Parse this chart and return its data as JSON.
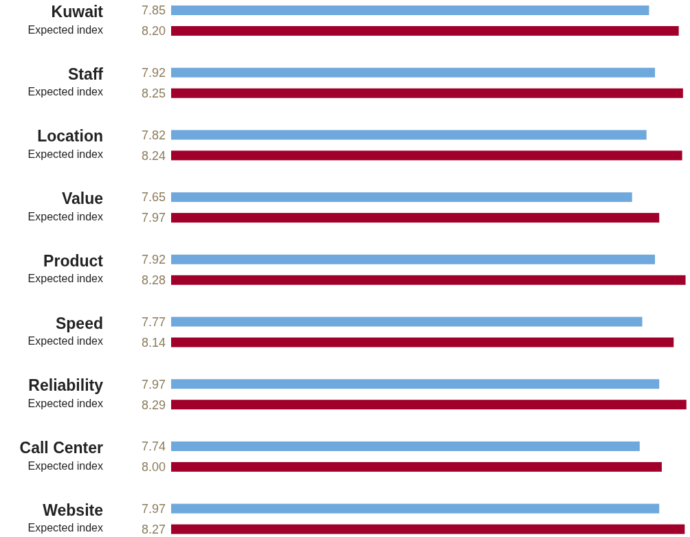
{
  "chart_data": {
    "type": "bar",
    "orientation": "horizontal",
    "categories": [
      "Kuwait",
      "Staff",
      "Location",
      "Value",
      "Product",
      "Speed",
      "Reliability",
      "Call Center",
      "Website"
    ],
    "series": [
      {
        "color": "#6fa8dc",
        "values": [
          7.85,
          7.92,
          7.82,
          7.65,
          7.92,
          7.77,
          7.97,
          7.74,
          7.97
        ],
        "value_labels": [
          "7.85",
          "7.92",
          "7.82",
          "7.65",
          "7.92",
          "7.77",
          "7.97",
          "7.74",
          "7.97"
        ]
      },
      {
        "name": "Expected index",
        "color": "#a0002a",
        "values": [
          8.2,
          8.25,
          8.24,
          7.97,
          8.28,
          8.14,
          8.29,
          8.0,
          8.27
        ],
        "value_labels": [
          "8.20",
          "8.25",
          "8.24",
          "7.97",
          "8.28",
          "8.14",
          "8.29",
          "8.00",
          "8.27"
        ]
      }
    ],
    "xlim": [
      2.22,
      8.3
    ]
  }
}
